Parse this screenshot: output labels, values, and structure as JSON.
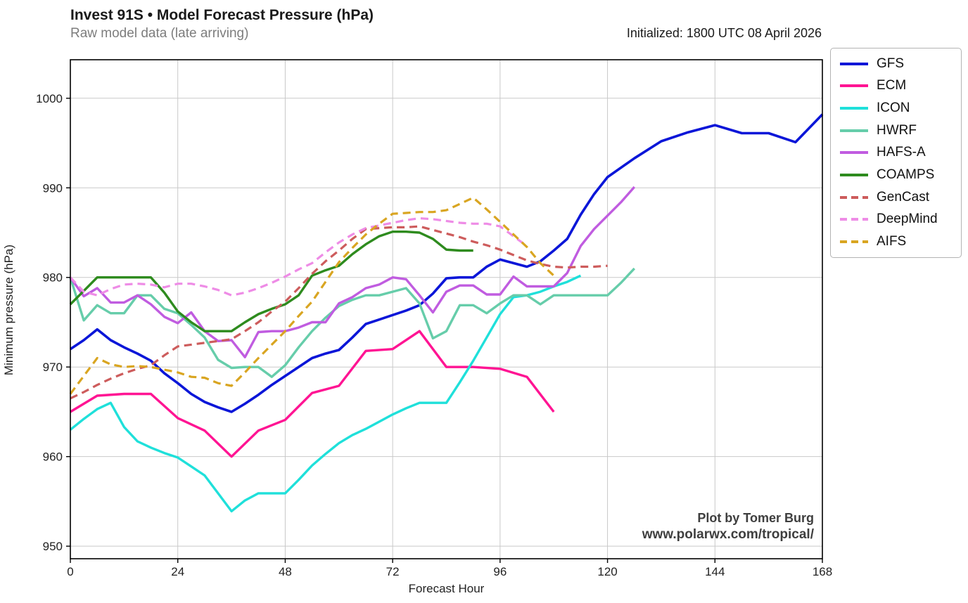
{
  "header": {
    "title": "Invest 91S • Model Forecast Pressure (hPa)",
    "subtitle": "Raw model data (late arriving)",
    "initialized": "Initialized: 1800 UTC 08 April 2026"
  },
  "watermark": {
    "line1": "Plot by Tomer Burg",
    "line2": "www.polarwx.com/tropical/"
  },
  "chart_data": {
    "type": "line",
    "title": "Invest 91S • Model Forecast Pressure (hPa)",
    "subtitle": "Raw model data (late arriving)",
    "initialized": "Initialized: 1800 UTC 08 April 2026",
    "xlabel": "Forecast Hour",
    "ylabel": "Minimum pressure (hPa)",
    "xlim": [
      0,
      168
    ],
    "ylim": [
      948.6,
      1004.3
    ],
    "xticks": [
      0,
      24,
      48,
      72,
      96,
      120,
      144,
      168
    ],
    "yticks": [
      950,
      960,
      970,
      980,
      990,
      1000
    ],
    "grid": true,
    "grid_color": "#c9c9c9",
    "legend_position": "outside-right",
    "series": [
      {
        "name": "GFS",
        "color": "#0b16d8",
        "dashed": false,
        "width": 3.6,
        "hours": [
          0,
          3,
          6,
          9,
          12,
          15,
          18,
          21,
          24,
          27,
          30,
          33,
          36,
          39,
          42,
          45,
          48,
          51,
          54,
          57,
          60,
          63,
          66,
          69,
          72,
          75,
          78,
          81,
          84,
          87,
          90,
          93,
          96,
          99,
          102,
          105,
          108,
          111,
          114,
          117,
          120,
          126,
          132,
          138,
          144,
          150,
          156,
          162,
          168
        ],
        "values": [
          972,
          973,
          974.2,
          973,
          972.2,
          971.5,
          970.7,
          969.3,
          968.2,
          967,
          966.1,
          965.5,
          965,
          965.9,
          966.9,
          968,
          969,
          970,
          971,
          971.5,
          971.9,
          973.3,
          974.8,
          975.3,
          975.8,
          976.3,
          976.9,
          978.2,
          979.9,
          980,
          980,
          981.2,
          982,
          981.6,
          981.2,
          981.8,
          983,
          984.3,
          987,
          989.3,
          991.2,
          993.3,
          995.2,
          996.2,
          997,
          996.1,
          996.1,
          995.1,
          998.2
        ]
      },
      {
        "name": "ECM",
        "color": "#ff1493",
        "dashed": false,
        "width": 3.4,
        "hours": [
          0,
          6,
          12,
          18,
          24,
          30,
          36,
          42,
          48,
          54,
          60,
          66,
          72,
          78,
          84,
          90,
          96,
          102,
          108
        ],
        "values": [
          965,
          966.8,
          967,
          967,
          964.3,
          962.9,
          960,
          962.9,
          964.1,
          967.1,
          967.9,
          971.8,
          972,
          974,
          970,
          970,
          969.8,
          968.9,
          965
        ]
      },
      {
        "name": "ICON",
        "color": "#1fe0da",
        "dashed": false,
        "width": 3.4,
        "hours": [
          0,
          3,
          6,
          9,
          12,
          15,
          18,
          21,
          24,
          27,
          30,
          33,
          36,
          39,
          42,
          45,
          48,
          51,
          54,
          57,
          60,
          63,
          66,
          69,
          72,
          75,
          78,
          81,
          84,
          87,
          90,
          93,
          96,
          99,
          102,
          105,
          108,
          111,
          114
        ],
        "values": [
          963,
          964.2,
          965.3,
          966,
          963.3,
          961.7,
          961,
          960.4,
          959.9,
          958.9,
          957.9,
          955.9,
          953.9,
          955.1,
          955.9,
          955.9,
          955.9,
          957.4,
          959,
          960.3,
          961.5,
          962.4,
          963.1,
          963.9,
          964.7,
          965.4,
          966,
          966,
          966,
          968.3,
          970.7,
          973.3,
          975.9,
          977.8,
          978,
          978.4,
          979,
          979.5,
          980.2
        ]
      },
      {
        "name": "HWRF",
        "color": "#66cdaa",
        "dashed": false,
        "width": 3.4,
        "hours": [
          0,
          3,
          6,
          9,
          12,
          15,
          18,
          21,
          24,
          27,
          30,
          33,
          36,
          39,
          42,
          45,
          48,
          51,
          54,
          57,
          60,
          63,
          66,
          69,
          72,
          75,
          78,
          81,
          84,
          87,
          90,
          93,
          96,
          99,
          102,
          105,
          108,
          111,
          114,
          117,
          120,
          123,
          126
        ],
        "values": [
          980,
          975.2,
          976.9,
          976,
          976,
          978,
          978,
          976.5,
          976,
          974.7,
          973.3,
          970.8,
          969.9,
          970,
          970,
          968.9,
          970.2,
          972.2,
          974,
          975.5,
          976.8,
          977.5,
          978,
          978,
          978.4,
          978.8,
          977.1,
          973.2,
          974,
          976.9,
          976.9,
          976,
          977.1,
          978,
          978,
          977,
          978,
          978,
          978,
          978,
          978,
          979.4,
          981
        ]
      },
      {
        "name": "HAFS-A",
        "color": "#c05ce0",
        "dashed": false,
        "width": 3.4,
        "hours": [
          0,
          3,
          6,
          9,
          12,
          15,
          18,
          21,
          24,
          27,
          30,
          33,
          36,
          39,
          42,
          45,
          48,
          51,
          54,
          57,
          60,
          63,
          66,
          69,
          72,
          75,
          78,
          81,
          84,
          87,
          90,
          93,
          96,
          99,
          102,
          105,
          108,
          111,
          114,
          117,
          120,
          123,
          126
        ],
        "values": [
          980,
          977.9,
          978.8,
          977.2,
          977.2,
          978,
          977,
          975.6,
          974.9,
          976.1,
          974,
          972.9,
          973,
          971.1,
          973.9,
          974,
          974,
          974.4,
          975,
          975,
          977.1,
          977.8,
          978.8,
          979.2,
          980,
          979.8,
          978,
          976.1,
          978.4,
          979.1,
          979.1,
          978.1,
          978.1,
          980.1,
          979,
          979,
          979,
          980.5,
          983.5,
          985.4,
          986.9,
          988.4,
          990.1
        ]
      },
      {
        "name": "COAMPS",
        "color": "#2e8b1e",
        "dashed": false,
        "width": 3.4,
        "hours": [
          0,
          3,
          6,
          9,
          12,
          15,
          18,
          21,
          24,
          27,
          30,
          33,
          36,
          39,
          42,
          45,
          48,
          51,
          54,
          57,
          60,
          63,
          66,
          69,
          72,
          75,
          78,
          81,
          84,
          87,
          90
        ],
        "values": [
          977,
          978.5,
          980,
          980,
          980,
          980,
          980,
          978.3,
          976.2,
          975,
          974,
          974,
          974,
          975,
          975.9,
          976.5,
          977,
          978,
          980.2,
          980.8,
          981.3,
          982.6,
          983.7,
          984.6,
          985.1,
          985.1,
          985,
          984.3,
          983.1,
          983,
          983
        ]
      },
      {
        "name": "GenCast",
        "color": "#cd5c5c",
        "dashed": true,
        "width": 3.2,
        "hours": [
          0,
          3,
          6,
          9,
          12,
          15,
          18,
          21,
          24,
          27,
          30,
          33,
          36,
          39,
          42,
          45,
          48,
          51,
          54,
          57,
          60,
          63,
          66,
          69,
          72,
          75,
          78,
          81,
          84,
          87,
          90,
          93,
          96,
          99,
          102,
          105,
          108,
          111,
          114,
          117,
          120
        ],
        "values": [
          966.5,
          967.2,
          968,
          968.7,
          969.3,
          969.8,
          970.2,
          971.3,
          972.3,
          972.5,
          972.7,
          972.9,
          973.1,
          974,
          975,
          976.2,
          977.3,
          978.8,
          980.4,
          981.8,
          983,
          984.3,
          985.4,
          985.5,
          985.6,
          985.6,
          985.7,
          985.3,
          984.9,
          984.5,
          984,
          983.6,
          983.1,
          982.5,
          981.9,
          981.5,
          981.2,
          981.1,
          981.2,
          981.2,
          981.3
        ]
      },
      {
        "name": "DeepMind",
        "color": "#ee8ce6",
        "dashed": true,
        "width": 3.2,
        "hours": [
          0,
          3,
          6,
          9,
          12,
          15,
          18,
          21,
          24,
          27,
          30,
          33,
          36,
          39,
          42,
          45,
          48,
          51,
          54,
          57,
          60,
          63,
          66,
          69,
          72,
          75,
          78,
          81,
          84,
          87,
          90,
          93,
          96,
          99,
          102
        ],
        "values": [
          980,
          978.4,
          978,
          978.7,
          979.2,
          979.3,
          979.2,
          978.9,
          979.3,
          979.3,
          979,
          978.6,
          978,
          978.3,
          978.8,
          979.4,
          980.1,
          980.9,
          981.6,
          982.8,
          983.9,
          984.8,
          985.5,
          985.8,
          986.1,
          986.4,
          986.6,
          986.5,
          986.3,
          986.1,
          986,
          986,
          985.7,
          984.6,
          983.5
        ]
      },
      {
        "name": "AIFS",
        "color": "#d9a521",
        "dashed": true,
        "width": 3.2,
        "hours": [
          0,
          3,
          6,
          9,
          12,
          15,
          18,
          21,
          24,
          27,
          30,
          33,
          36,
          39,
          42,
          45,
          48,
          51,
          54,
          57,
          60,
          63,
          66,
          69,
          72,
          75,
          78,
          81,
          84,
          87,
          90,
          93,
          96,
          99,
          102,
          105,
          108
        ],
        "values": [
          967,
          969,
          971,
          970.3,
          970,
          970.1,
          970,
          969.7,
          969.4,
          968.9,
          968.8,
          968.2,
          967.9,
          969.4,
          971,
          972.5,
          974,
          975.7,
          977.3,
          979.5,
          981.7,
          983.3,
          984.8,
          986,
          987.1,
          987.2,
          987.3,
          987.3,
          987.5,
          988.2,
          988.9,
          987.6,
          986.2,
          984.8,
          983.4,
          981.6,
          980.2
        ]
      }
    ]
  }
}
